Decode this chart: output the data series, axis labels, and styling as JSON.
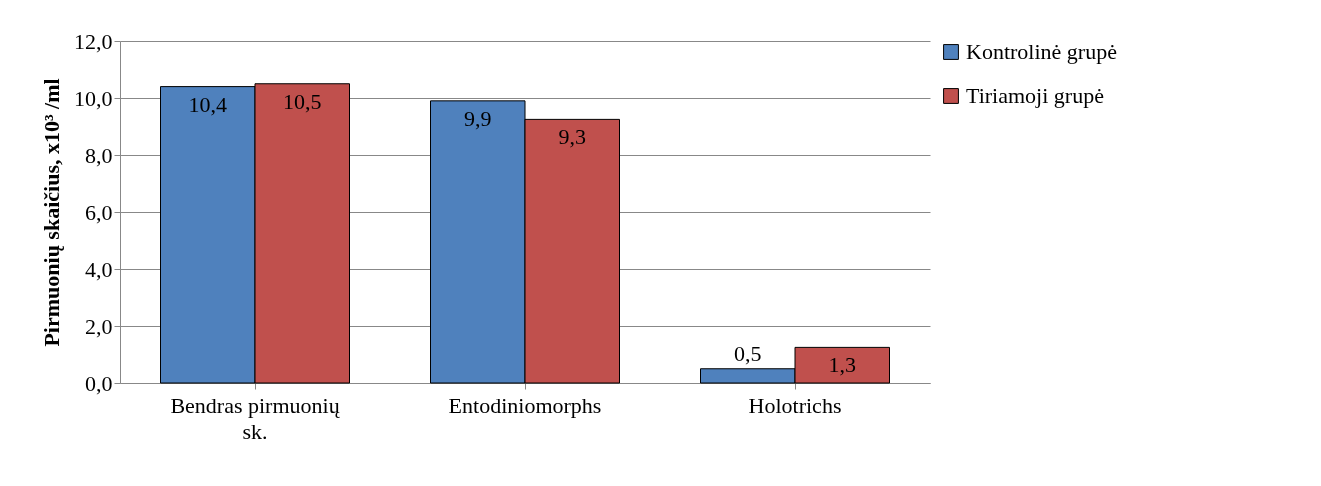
{
  "chart_data": {
    "type": "bar",
    "ylabel": "Pirmuonių skaičius, x10³\n/ml",
    "categories": [
      "Bendras pirmuonių sk.",
      "Entodiniomorphs",
      "Holotrichs"
    ],
    "series": [
      {
        "name": "Kontrolinė grupė",
        "color": "#4f81bd",
        "values": [
          10.4,
          9.9,
          0.5
        ],
        "value_labels": [
          "10,4",
          "9,9",
          "0,5"
        ]
      },
      {
        "name": "Tiriamoji grupė",
        "color": "#c0504d",
        "values": [
          10.5,
          9.25,
          1.25
        ],
        "value_labels": [
          "10,5",
          "9,3",
          "1,3"
        ]
      }
    ],
    "ylim": [
      0,
      12
    ],
    "yticks": [
      {
        "value": 0,
        "label": "0,0"
      },
      {
        "value": 2,
        "label": "2,0"
      },
      {
        "value": 4,
        "label": "4,0"
      },
      {
        "value": 6,
        "label": "6,0"
      },
      {
        "value": 8,
        "label": "8,0"
      },
      {
        "value": 10,
        "label": "10,0"
      },
      {
        "value": 12,
        "label": "12,0"
      }
    ],
    "grid": "y",
    "legend": "right"
  }
}
